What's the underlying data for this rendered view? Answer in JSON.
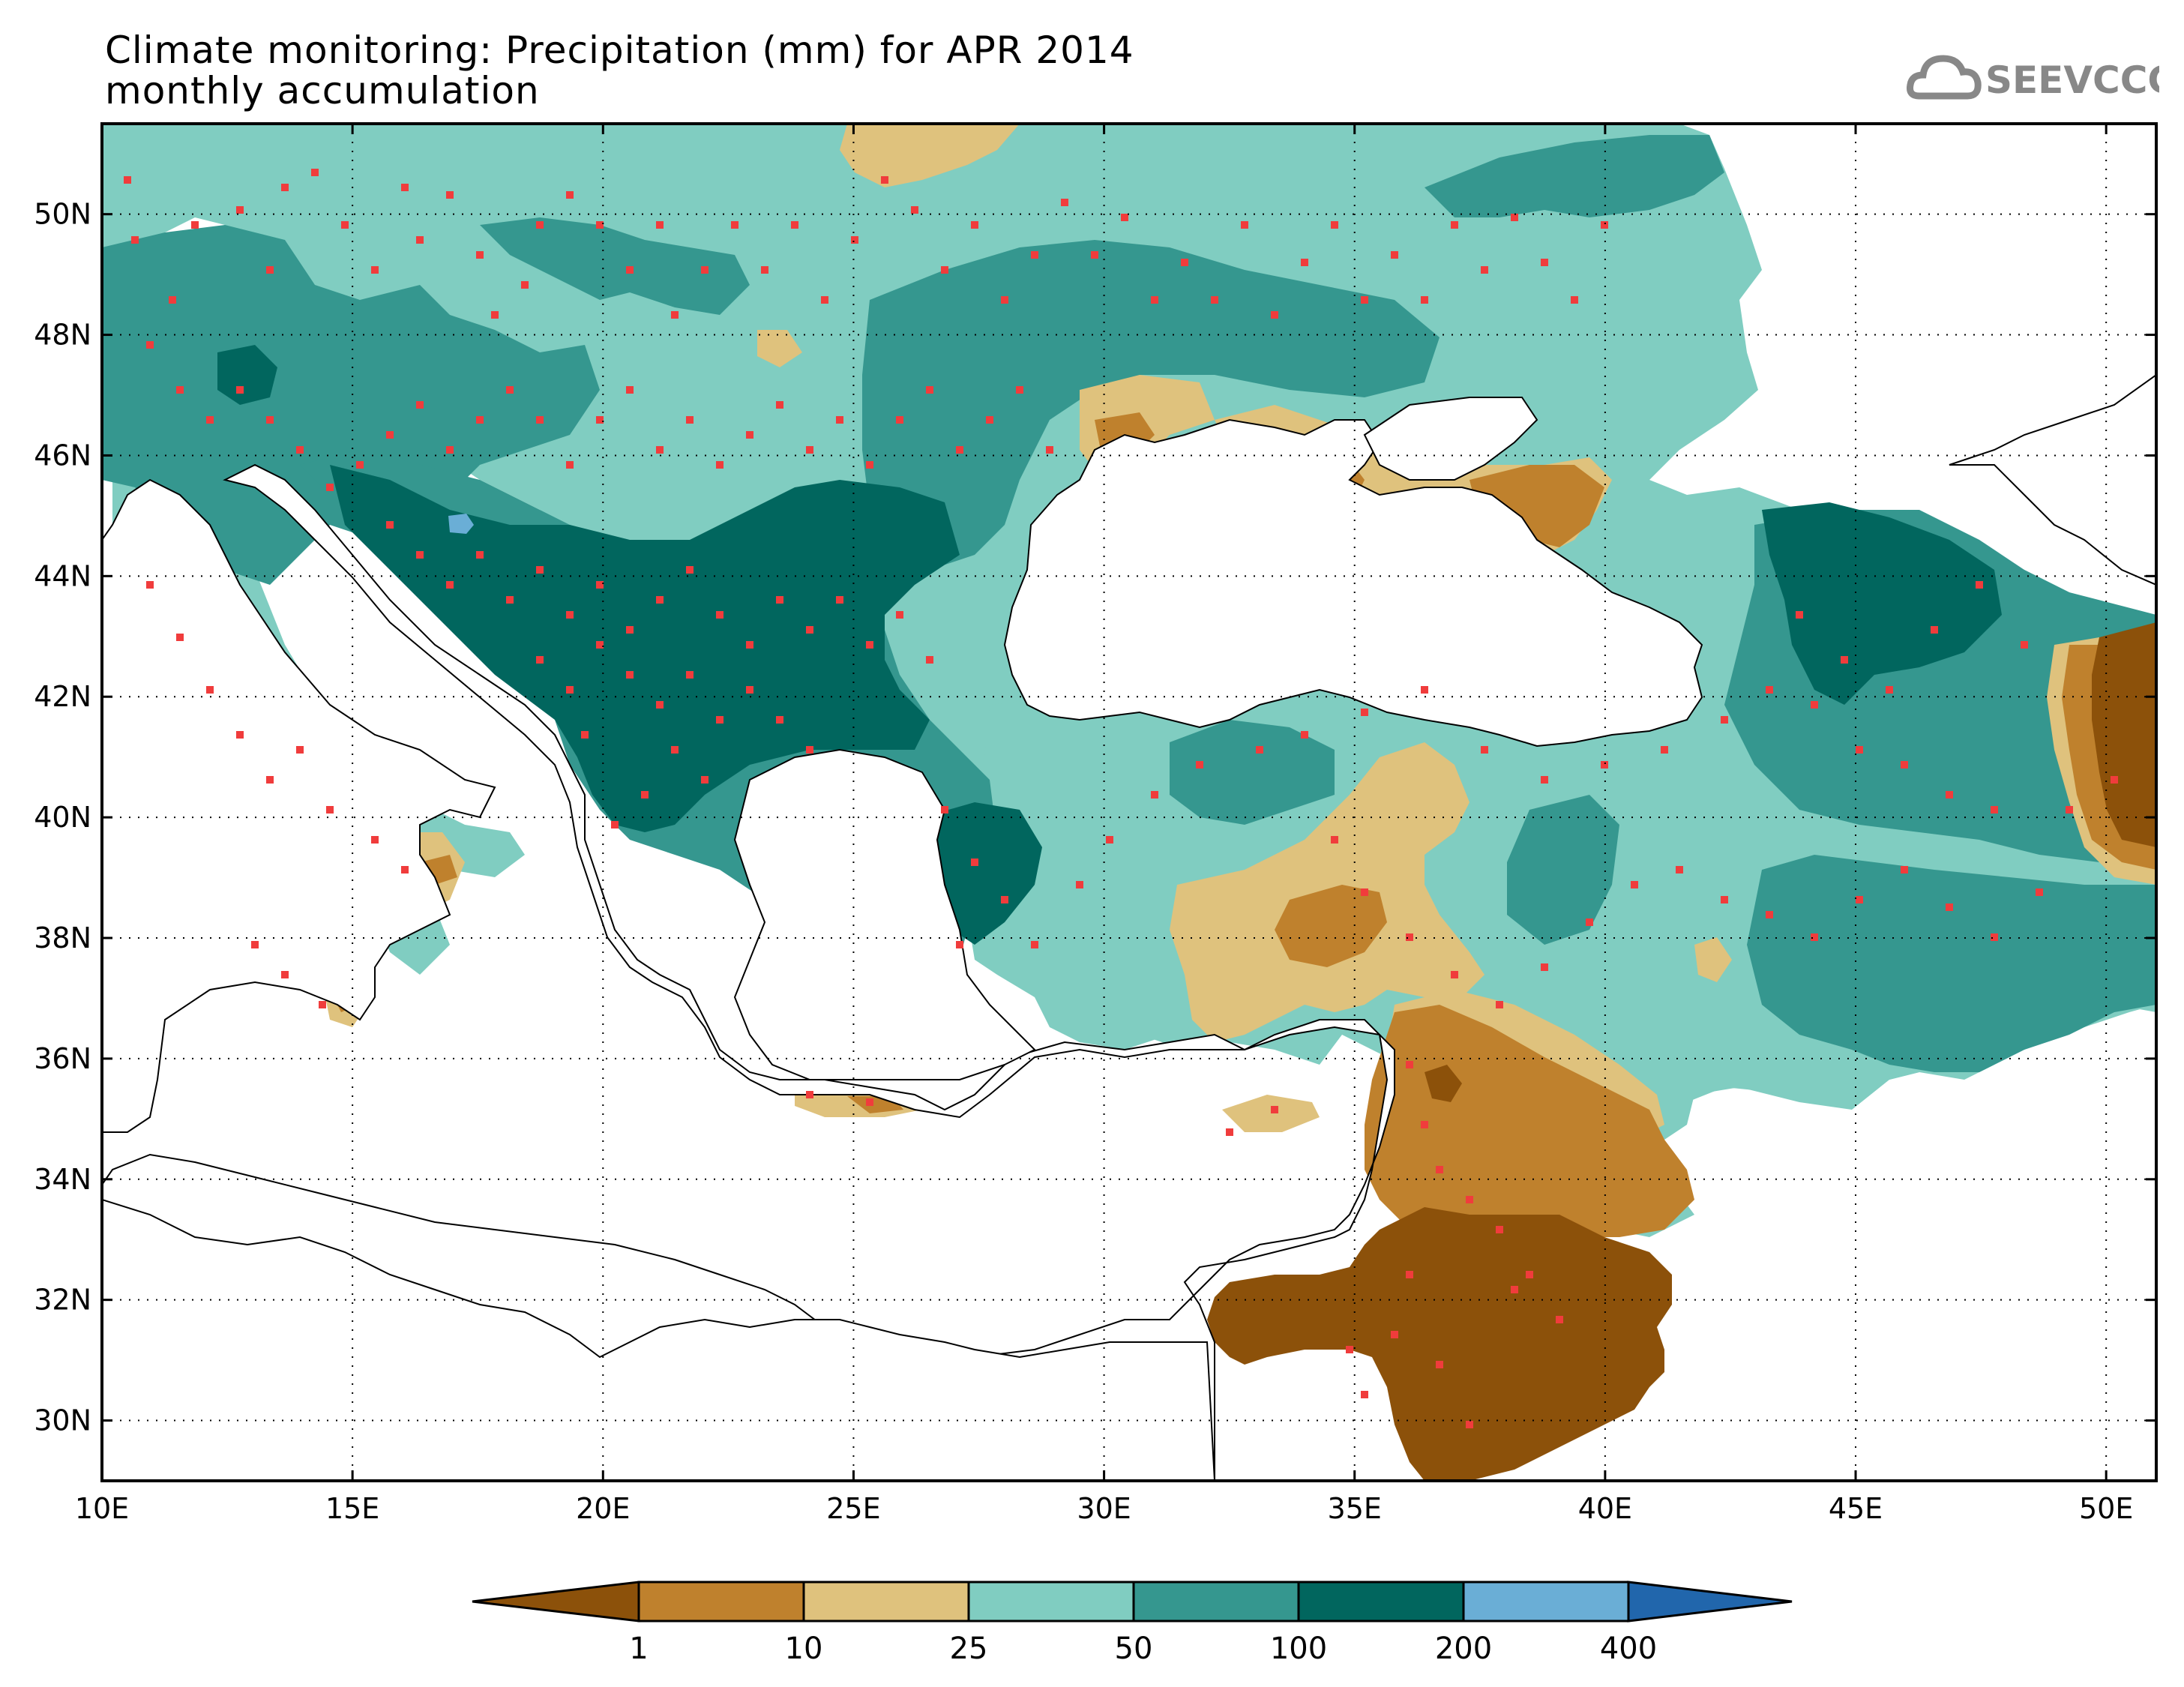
{
  "title": {
    "line1": "Climate monitoring: Precipitation (mm) for APR 2014",
    "line2": "monthly accumulation"
  },
  "logo": {
    "text": "SEEVCCC",
    "icon": "cloud-icon",
    "color": "#888888"
  },
  "map": {
    "lon_range": [
      10,
      51
    ],
    "lat_range": [
      29,
      51.5
    ],
    "lon_ticks": [
      "10E",
      "15E",
      "20E",
      "25E",
      "30E",
      "35E",
      "40E",
      "45E",
      "50E"
    ],
    "lat_ticks": [
      "30N",
      "32N",
      "34N",
      "36N",
      "38N",
      "40N",
      "42N",
      "44N",
      "46N",
      "48N",
      "50N"
    ],
    "grid": "dotted"
  },
  "legend": {
    "thresholds": [
      "1",
      "10",
      "25",
      "50",
      "100",
      "200",
      "400"
    ],
    "colors": [
      "#8c510a",
      "#bf812d",
      "#dfc27d",
      "#80cdc1",
      "#35978f",
      "#01665e",
      "#6aaed6",
      "#2166ac"
    ]
  },
  "station_marker_color": "#f03c3c"
}
